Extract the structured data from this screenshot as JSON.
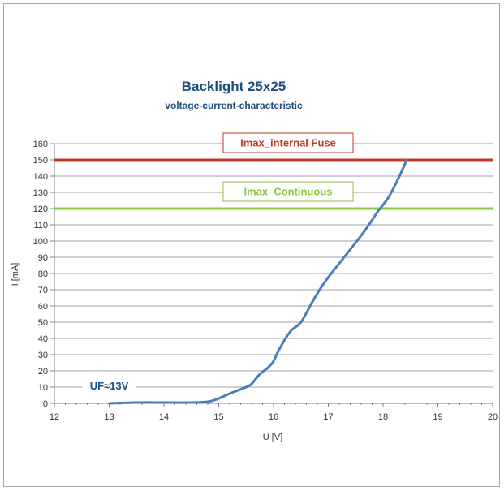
{
  "chart_data": {
    "type": "line",
    "title": "Backlight 25x25",
    "subtitle": "voltage-current-characteristic",
    "xlabel": "U [V]",
    "ylabel": "I [mA]",
    "xlim": [
      12,
      20
    ],
    "ylim": [
      0,
      160
    ],
    "xticks": [
      12,
      13,
      14,
      15,
      16,
      17,
      18,
      19,
      20
    ],
    "yticks": [
      0,
      10,
      20,
      30,
      40,
      50,
      60,
      70,
      80,
      90,
      100,
      110,
      120,
      130,
      140,
      150,
      160
    ],
    "grid": "horizontal",
    "series": [
      {
        "color": "#4a7ebb",
        "x": [
          13.0,
          13.5,
          14.0,
          14.5,
          14.8,
          15.0,
          15.2,
          15.5,
          15.6,
          15.75,
          15.9,
          16.0,
          16.1,
          16.3,
          16.5,
          16.7,
          16.9,
          17.1,
          17.5,
          17.7,
          17.9,
          18.1,
          18.3,
          18.43
        ],
        "y": [
          0,
          0.5,
          0.5,
          0.5,
          1,
          3,
          6,
          10,
          12,
          18,
          22,
          26,
          33,
          44,
          50,
          62,
          73,
          82,
          99,
          108,
          118,
          127,
          140,
          150
        ]
      }
    ],
    "reference_lines": [
      {
        "y": 150,
        "label": "Imax_internal Fuse",
        "color": "#c0392b"
      },
      {
        "y": 120,
        "label": "Imax_Continuous",
        "color": "#8dc63f"
      }
    ],
    "annotations": [
      {
        "text": "UF≈13V",
        "x": 13.0,
        "y": 11
      }
    ]
  }
}
